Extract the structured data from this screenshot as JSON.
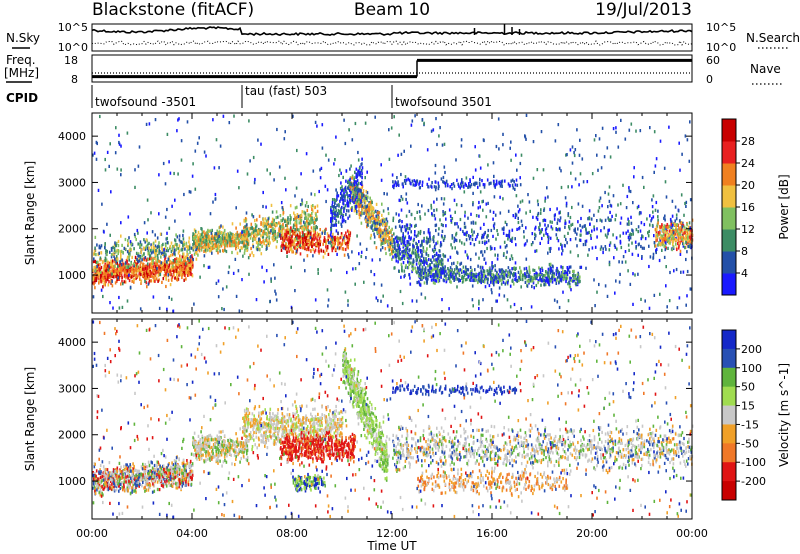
{
  "header": {
    "station": "Blackstone (fitACF)",
    "beam": "Beam 10",
    "date": "19/Jul/2013"
  },
  "noise_panel": {
    "left_label": "N.Sky",
    "right_label": "N.Search",
    "left_ticks": [
      "10^5",
      "10^0"
    ],
    "right_ticks": [
      "10^5",
      "10^0"
    ]
  },
  "freq_panel": {
    "left_label_line1": "Freq.",
    "left_label_line2": "[MHz]",
    "right_label": "Nave",
    "left_ticks": [
      "18",
      "8"
    ],
    "right_ticks": [
      "60",
      "0"
    ],
    "nave_levels": [
      {
        "start": 0.0,
        "end": 13.0,
        "value": 12
      },
      {
        "start": 13.0,
        "end": 24.0,
        "value": 48
      }
    ]
  },
  "cpid": {
    "label": "CPID",
    "segments": [
      {
        "start": 0.0,
        "end": 6.0,
        "label": "twofsound -3501"
      },
      {
        "start": 6.0,
        "end": 12.0,
        "label": "tau (fast) 503"
      },
      {
        "start": 12.0,
        "end": 24.0,
        "label": "twofsound 3501"
      }
    ]
  },
  "chart_data": [
    {
      "type": "heatmap",
      "title": "",
      "xlabel": "Time UT",
      "ylabel": "Slant Range [km]",
      "xlim": [
        0,
        24
      ],
      "ylim": [
        180,
        4500
      ],
      "yticks": [
        "1000",
        "2000",
        "3000",
        "4000"
      ],
      "colorbar": {
        "label": "Power [dB]",
        "ticks": [
          "4",
          "8",
          "12",
          "16",
          "20",
          "24",
          "28"
        ],
        "colors": [
          "#1a1aff",
          "#2350a8",
          "#3c8c64",
          "#80c060",
          "#f0c040",
          "#f08020",
          "#e82020",
          "#c80000"
        ]
      },
      "features": [
        {
          "t_start": 0.0,
          "t_end": 4.0,
          "range_start": 1200,
          "range_end": 1300,
          "level": "20-28 dB"
        },
        {
          "t_start": 4.0,
          "t_end": 6.0,
          "range_start": 1800,
          "range_end": 1900,
          "level": "16-24 dB"
        },
        {
          "t_start": 7.0,
          "t_end": 10.5,
          "range_start": 1600,
          "range_end": 2100,
          "level": "12-28 dB"
        },
        {
          "t_start": 10.5,
          "t_end": 12.0,
          "range_start": 2500,
          "range_end": 1500,
          "level": "16-24 dB"
        },
        {
          "t_start": 12.5,
          "t_end": 19.0,
          "range_start": 1200,
          "range_end": 900,
          "level": "8-12 dB"
        },
        {
          "t_start": 22.5,
          "t_end": 24.0,
          "range_start": 1900,
          "range_end": 2000,
          "level": "12-24 dB"
        }
      ]
    },
    {
      "type": "heatmap",
      "title": "",
      "xlabel": "Time UT",
      "ylabel": "Slant Range [km]",
      "xlim": [
        0,
        24
      ],
      "ylim": [
        180,
        4500
      ],
      "xticks": [
        "00:00",
        "04:00",
        "08:00",
        "12:00",
        "16:00",
        "20:00",
        "00:00"
      ],
      "yticks": [
        "1000",
        "2000",
        "3000",
        "4000"
      ],
      "colorbar": {
        "label": "Velocity [m s^-1]",
        "ticks": [
          "200",
          "100",
          "50",
          "15",
          "-15",
          "-50",
          "-100",
          "-200"
        ],
        "colors": [
          "#1428c8",
          "#2850b4",
          "#5fb43c",
          "#a0dc50",
          "#c8c8c8",
          "#f0a028",
          "#f07828",
          "#e01414",
          "#c80000"
        ]
      },
      "features": [
        {
          "t_start": 0.0,
          "t_end": 4.0,
          "range_start": 1100,
          "range_end": 1200,
          "velocity": "-15 to 15"
        },
        {
          "t_start": 6.0,
          "t_end": 10.0,
          "range_start": 2100,
          "range_end": 2300,
          "velocity": "-15 to 15"
        },
        {
          "t_start": 7.5,
          "t_end": 10.5,
          "range_start": 1500,
          "range_end": 2000,
          "velocity": "-200 to -100"
        },
        {
          "t_start": 10.0,
          "t_end": 11.8,
          "range_start": 3500,
          "range_end": 1300,
          "velocity": "15 to 100"
        },
        {
          "t_start": 12.5,
          "t_end": 24.0,
          "range_start": 1600,
          "range_end": 1900,
          "velocity": "-15 to 15"
        }
      ]
    }
  ]
}
